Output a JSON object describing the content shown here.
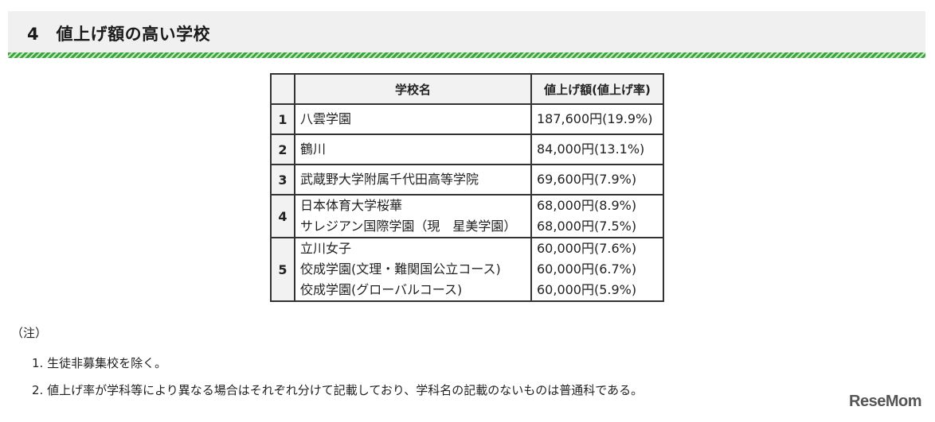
{
  "header": {
    "title": "4　値上げ額の高い学校"
  },
  "table": {
    "headers": [
      "学校名",
      "値上げ額(値上げ率)"
    ],
    "rows": [
      {
        "rank": "1",
        "names": [
          "八雲学園"
        ],
        "amounts": [
          "187,600円(19.9%)"
        ]
      },
      {
        "rank": "2",
        "names": [
          "鶴川"
        ],
        "amounts": [
          "84,000円(13.1%)"
        ]
      },
      {
        "rank": "3",
        "names": [
          "武蔵野大学附属千代田高等学院"
        ],
        "amounts": [
          "69,600円(7.9%)"
        ]
      },
      {
        "rank": "4",
        "names": [
          "日本体育大学桜華",
          "サレジアン国際学園（現　星美学園）"
        ],
        "amounts": [
          "68,000円(8.9%)",
          "68,000円(7.5%)"
        ]
      },
      {
        "rank": "5",
        "names": [
          "立川女子",
          "佼成学園(文理・難関国公立コース)",
          "佼成学園(グローバルコース)"
        ],
        "amounts": [
          "60,000円(7.6%)",
          "60,000円(6.7%)",
          "60,000円(5.9%)"
        ]
      }
    ]
  },
  "notes": {
    "label": "（注）",
    "items": [
      "1. 生徒非募集校を除く。",
      "2. 値上げ率が学科等により異なる場合はそれぞれ分けて記載しており、学科名の記載のないものは普通科である。"
    ]
  },
  "logo": {
    "text": "ReseMom"
  }
}
